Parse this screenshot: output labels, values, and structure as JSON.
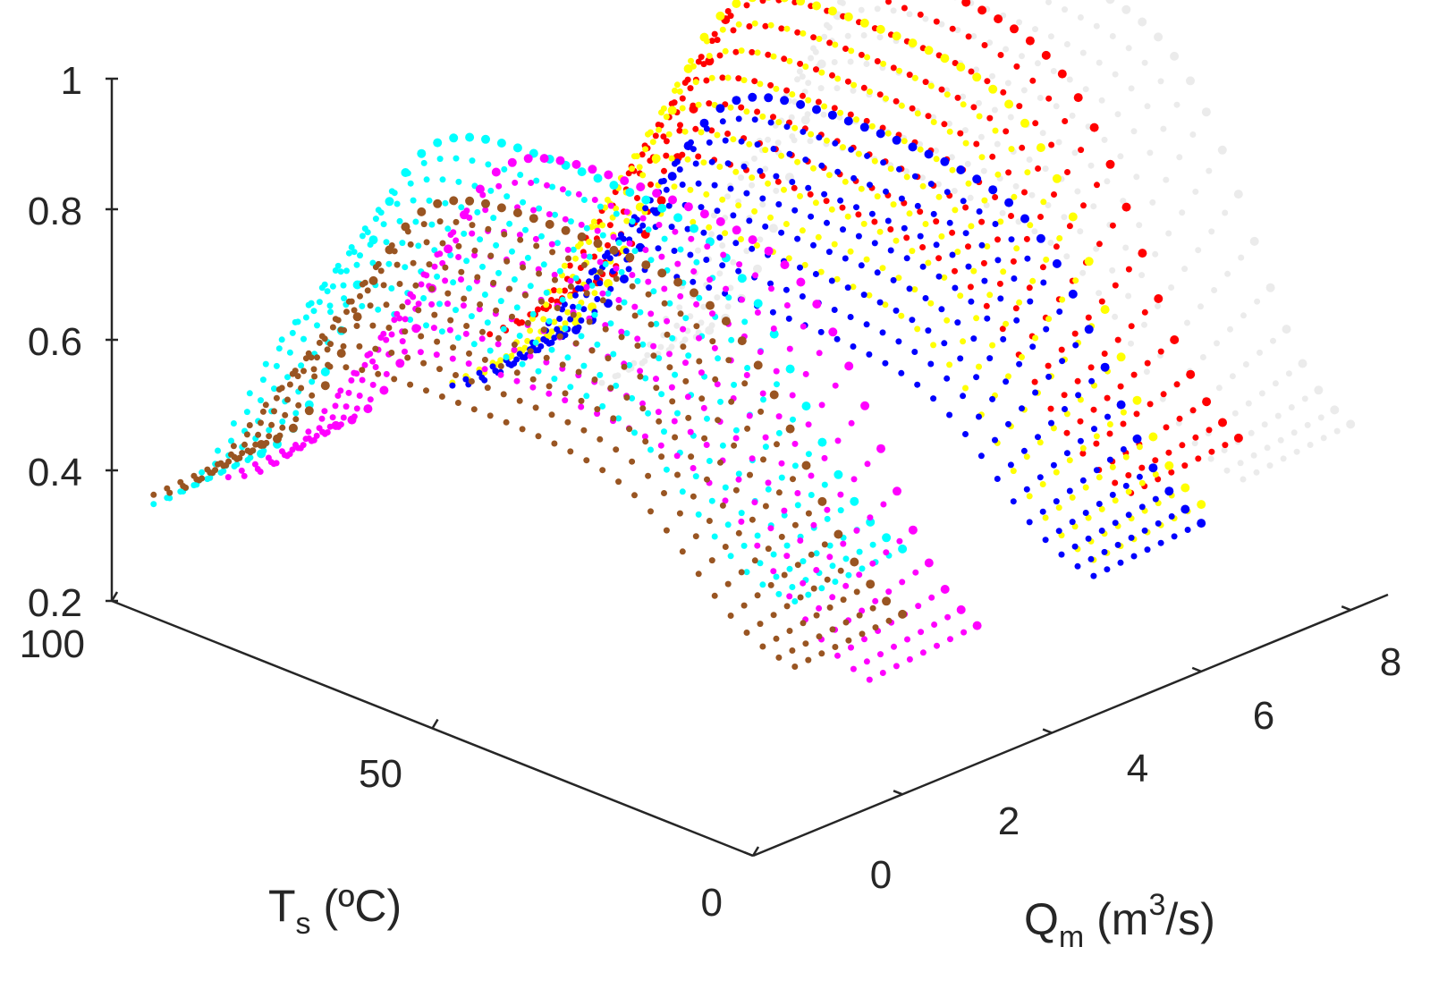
{
  "chart_data": {
    "type": "scatter",
    "dimensionality": "3d",
    "grid": false,
    "legend": "none",
    "axes": {
      "z": {
        "ticks": [
          "0.2",
          "0.4",
          "0.6",
          "0.8",
          "1"
        ],
        "range": [
          0.2,
          1.0
        ]
      },
      "x": {
        "label_main": "T",
        "label_sub": "s",
        "label_rest": " (ºC)",
        "ticks": [
          "0",
          "50",
          "100"
        ],
        "range": [
          0,
          100
        ]
      },
      "y": {
        "label_main": "Q",
        "label_sub": "m",
        "label_mid": " (m",
        "label_sup": "3",
        "label_rest": "/s)",
        "ticks": [
          "0",
          "2",
          "4",
          "6",
          "8"
        ],
        "range": [
          0,
          8.5
        ]
      }
    },
    "surfaces": [
      {
        "color": "#ebebeb",
        "qm": 8.0,
        "peak": 1.0,
        "low": 0.45,
        "dip": 0.2
      },
      {
        "color": "#ff0000",
        "qm": 6.5,
        "peak": 1.04,
        "low": 0.5,
        "dip": 0.35
      },
      {
        "color": "#ffff00",
        "qm": 6.0,
        "peak": 0.99,
        "low": 0.42,
        "dip": 0.3
      },
      {
        "color": "#0000ff",
        "qm": 6.0,
        "peak": 0.83,
        "low": 0.4,
        "dip": 0.3
      },
      {
        "color": "#00ffff",
        "qm": 2.0,
        "peak": 0.96,
        "low": 0.55,
        "dip": 0.3
      },
      {
        "color": "#ff00ff",
        "qm": 3.0,
        "peak": 0.88,
        "low": 0.38,
        "dip": 0.3
      },
      {
        "color": "#995522",
        "qm": 2.0,
        "peak": 0.86,
        "low": 0.45,
        "dip": 0.32
      }
    ]
  }
}
